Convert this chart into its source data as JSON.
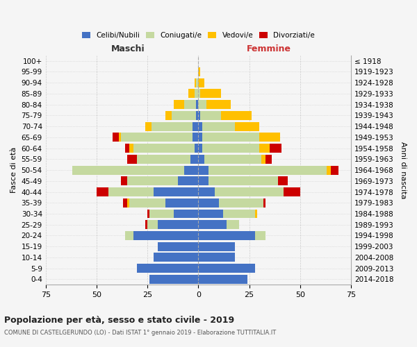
{
  "age_groups": [
    "0-4",
    "5-9",
    "10-14",
    "15-19",
    "20-24",
    "25-29",
    "30-34",
    "35-39",
    "40-44",
    "45-49",
    "50-54",
    "55-59",
    "60-64",
    "65-69",
    "70-74",
    "75-79",
    "80-84",
    "85-89",
    "90-94",
    "95-99",
    "100+"
  ],
  "birth_years": [
    "2014-2018",
    "2009-2013",
    "2004-2008",
    "1999-2003",
    "1994-1998",
    "1989-1993",
    "1984-1988",
    "1979-1983",
    "1974-1978",
    "1969-1973",
    "1964-1968",
    "1959-1963",
    "1954-1958",
    "1949-1953",
    "1944-1948",
    "1939-1943",
    "1934-1938",
    "1929-1933",
    "1924-1928",
    "1919-1923",
    "≤ 1918"
  ],
  "maschi": {
    "celibi": [
      24,
      30,
      22,
      20,
      32,
      20,
      12,
      16,
      22,
      10,
      7,
      4,
      2,
      3,
      3,
      1,
      1,
      0,
      0,
      0,
      0
    ],
    "coniugati": [
      0,
      0,
      0,
      0,
      4,
      5,
      12,
      18,
      22,
      25,
      55,
      26,
      30,
      35,
      20,
      12,
      6,
      2,
      1,
      0,
      0
    ],
    "vedovi": [
      0,
      0,
      0,
      0,
      0,
      0,
      0,
      1,
      0,
      0,
      0,
      0,
      2,
      1,
      3,
      3,
      5,
      3,
      1,
      0,
      0
    ],
    "divorziati": [
      0,
      0,
      0,
      0,
      0,
      1,
      1,
      2,
      6,
      3,
      0,
      5,
      2,
      3,
      0,
      0,
      0,
      0,
      0,
      0,
      0
    ]
  },
  "femmine": {
    "nubili": [
      24,
      28,
      18,
      18,
      28,
      14,
      12,
      10,
      8,
      5,
      5,
      3,
      2,
      2,
      2,
      1,
      0,
      0,
      0,
      0,
      0
    ],
    "coniugate": [
      0,
      0,
      0,
      0,
      5,
      6,
      16,
      22,
      34,
      34,
      58,
      28,
      28,
      28,
      16,
      10,
      4,
      1,
      0,
      0,
      0
    ],
    "vedove": [
      0,
      0,
      0,
      0,
      0,
      0,
      1,
      0,
      0,
      0,
      2,
      2,
      5,
      10,
      12,
      15,
      12,
      10,
      3,
      1,
      0
    ],
    "divorziate": [
      0,
      0,
      0,
      0,
      0,
      0,
      0,
      1,
      8,
      5,
      4,
      3,
      6,
      0,
      0,
      0,
      0,
      0,
      0,
      0,
      0
    ]
  },
  "colors": {
    "celibi": "#4472c4",
    "coniugati": "#c5d9a0",
    "vedovi": "#ffc000",
    "divorziati": "#cc0000"
  },
  "xlim": 75,
  "title": "Popolazione per età, sesso e stato civile - 2019",
  "subtitle": "COMUNE DI CASTELGERUNDO (LO) - Dati ISTAT 1° gennaio 2019 - Elaborazione TUTTITALIA.IT",
  "xlabel_left": "Maschi",
  "xlabel_right": "Femmine",
  "ylabel_left": "Fasce di età",
  "ylabel_right": "Anni di nascita",
  "legend_labels": [
    "Celibi/Nubili",
    "Coniugati/e",
    "Vedovi/e",
    "Divorziati/e"
  ],
  "background_color": "#f5f5f5",
  "grid_color": "#cccccc"
}
